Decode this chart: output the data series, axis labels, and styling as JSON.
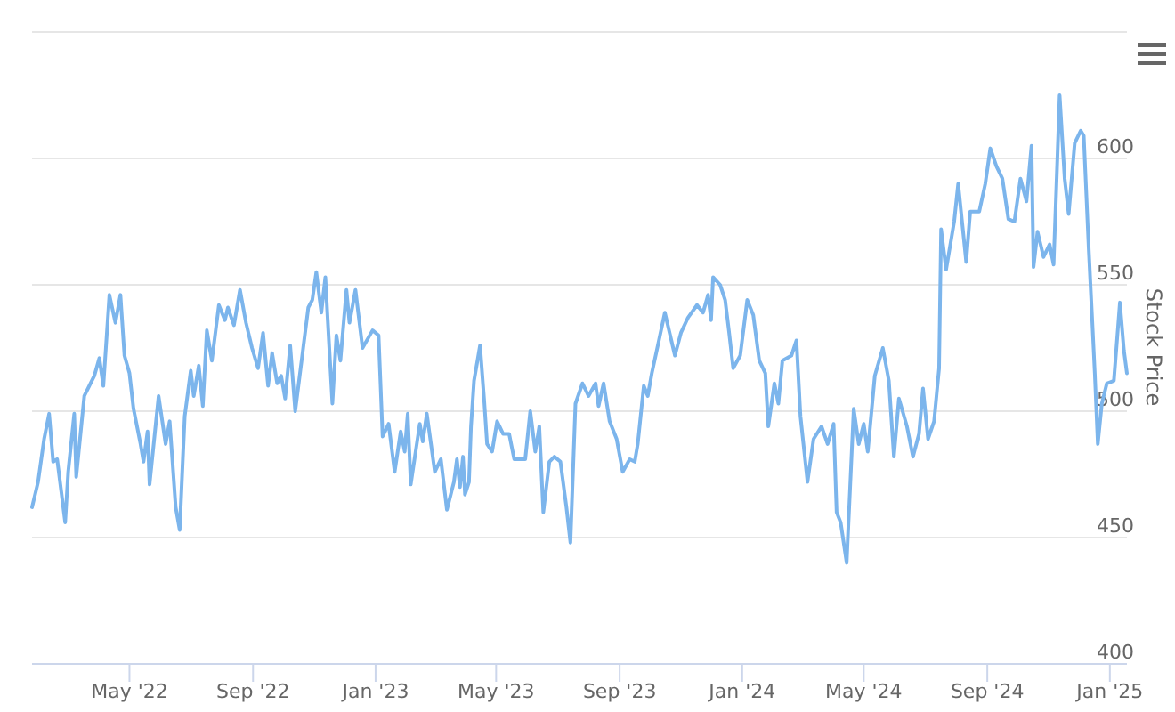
{
  "chart_data": {
    "type": "line",
    "ylabel": "Stock Price",
    "grid": "y",
    "xlim": [
      "2022-01-24",
      "2025-01-18"
    ],
    "ylim": [
      400,
      650
    ],
    "yticks": [
      400,
      450,
      500,
      550,
      600,
      {
        "value": 650,
        "label": null
      }
    ],
    "xticks": [
      {
        "value": "2022-05-01",
        "label": "May '22"
      },
      {
        "value": "2022-09-01",
        "label": "Sep '22"
      },
      {
        "value": "2023-01-01",
        "label": "Jan '23"
      },
      {
        "value": "2023-05-01",
        "label": "May '23"
      },
      {
        "value": "2023-09-01",
        "label": "Sep '23"
      },
      {
        "value": "2024-01-01",
        "label": "Jan '24"
      },
      {
        "value": "2024-05-01",
        "label": "May '24"
      },
      {
        "value": "2024-09-01",
        "label": "Sep '24"
      },
      {
        "value": "2025-01-01",
        "label": "Jan '25"
      }
    ],
    "series": [
      {
        "color": "#7cb5ec",
        "x": [
          "2022-01-24",
          "2022-01-30",
          "2022-02-05",
          "2022-02-10",
          "2022-02-14",
          "2022-02-18",
          "2022-02-26",
          "2022-03-01",
          "2022-03-07",
          "2022-03-09",
          "2022-03-17",
          "2022-03-27",
          "2022-04-01",
          "2022-04-05",
          "2022-04-11",
          "2022-04-17",
          "2022-04-22",
          "2022-04-26",
          "2022-05-01",
          "2022-05-05",
          "2022-05-12",
          "2022-05-15",
          "2022-05-19",
          "2022-05-21",
          "2022-05-30",
          "2022-06-06",
          "2022-06-10",
          "2022-06-16",
          "2022-06-20",
          "2022-06-25",
          "2022-07-01",
          "2022-07-04",
          "2022-07-09",
          "2022-07-13",
          "2022-07-17",
          "2022-07-22",
          "2022-07-29",
          "2022-08-04",
          "2022-08-07",
          "2022-08-13",
          "2022-08-19",
          "2022-08-25",
          "2022-08-31",
          "2022-09-06",
          "2022-09-11",
          "2022-09-16",
          "2022-09-20",
          "2022-09-25",
          "2022-09-29",
          "2022-10-03",
          "2022-10-08",
          "2022-10-13",
          "2022-10-20",
          "2022-10-26",
          "2022-10-30",
          "2022-11-03",
          "2022-11-08",
          "2022-11-12",
          "2022-11-19",
          "2022-11-23",
          "2022-11-27",
          "2022-12-03",
          "2022-12-06",
          "2022-12-12",
          "2022-12-19",
          "2022-12-29",
          "2023-01-04",
          "2023-01-08",
          "2023-01-14",
          "2023-01-20",
          "2023-01-26",
          "2023-01-30",
          "2023-02-02",
          "2023-02-05",
          "2023-02-14",
          "2023-02-17",
          "2023-02-21",
          "2023-03-01",
          "2023-03-07",
          "2023-03-13",
          "2023-03-20",
          "2023-03-23",
          "2023-03-26",
          "2023-03-29",
          "2023-03-31",
          "2023-04-04",
          "2023-04-06",
          "2023-04-09",
          "2023-04-15",
          "2023-04-19",
          "2023-04-22",
          "2023-04-27",
          "2023-05-02",
          "2023-05-08",
          "2023-05-14",
          "2023-05-19",
          "2023-05-30",
          "2023-06-04",
          "2023-06-09",
          "2023-06-13",
          "2023-06-17",
          "2023-06-23",
          "2023-06-28",
          "2023-07-04",
          "2023-07-10",
          "2023-07-14",
          "2023-07-19",
          "2023-07-26",
          "2023-08-01",
          "2023-08-08",
          "2023-08-11",
          "2023-08-16",
          "2023-08-22",
          "2023-08-29",
          "2023-09-04",
          "2023-09-11",
          "2023-09-16",
          "2023-09-19",
          "2023-09-25",
          "2023-09-29",
          "2023-10-03",
          "2023-10-09",
          "2023-10-16",
          "2023-10-26",
          "2023-11-01",
          "2023-11-08",
          "2023-11-17",
          "2023-11-23",
          "2023-11-28",
          "2023-12-01",
          "2023-12-03",
          "2023-12-10",
          "2023-12-15",
          "2023-12-19",
          "2023-12-23",
          "2023-12-30",
          "2024-01-06",
          "2024-01-12",
          "2024-01-18",
          "2024-01-24",
          "2024-01-27",
          "2024-02-02",
          "2024-02-06",
          "2024-02-10",
          "2024-02-19",
          "2024-02-24",
          "2024-02-28",
          "2024-03-06",
          "2024-03-12",
          "2024-03-20",
          "2024-03-26",
          "2024-04-01",
          "2024-04-04",
          "2024-04-08",
          "2024-04-14",
          "2024-04-21",
          "2024-04-26",
          "2024-05-01",
          "2024-05-05",
          "2024-05-12",
          "2024-05-20",
          "2024-05-26",
          "2024-05-31",
          "2024-06-05",
          "2024-06-13",
          "2024-06-19",
          "2024-06-25",
          "2024-06-29",
          "2024-07-04",
          "2024-07-10",
          "2024-07-15",
          "2024-07-17",
          "2024-07-22",
          "2024-07-30",
          "2024-08-03",
          "2024-08-11",
          "2024-08-15",
          "2024-08-24",
          "2024-08-30",
          "2024-09-04",
          "2024-09-10",
          "2024-09-16",
          "2024-09-22",
          "2024-09-28",
          "2024-10-04",
          "2024-10-10",
          "2024-10-15",
          "2024-10-17",
          "2024-10-21",
          "2024-10-27",
          "2024-11-02",
          "2024-11-06",
          "2024-11-12",
          "2024-11-17",
          "2024-11-21",
          "2024-11-27",
          "2024-12-03",
          "2024-12-06",
          "2024-12-11",
          "2024-12-17",
          "2024-12-20",
          "2024-12-24",
          "2024-12-29",
          "2025-01-05",
          "2025-01-11",
          "2025-01-15",
          "2025-01-18"
        ],
        "values": [
          462,
          472,
          489,
          499,
          480,
          481,
          456,
          476,
          499,
          474,
          506,
          514,
          521,
          510,
          546,
          535,
          546,
          522,
          515,
          501,
          487,
          480,
          492,
          471,
          506,
          487,
          496,
          462,
          453,
          498,
          516,
          506,
          518,
          502,
          532,
          520,
          542,
          536,
          541,
          534,
          548,
          535,
          525,
          517,
          531,
          510,
          523,
          511,
          514,
          505,
          526,
          500,
          522,
          541,
          544,
          555,
          539,
          553,
          503,
          530,
          520,
          548,
          535,
          548,
          525,
          532,
          530,
          490,
          495,
          476,
          492,
          484,
          499,
          471,
          495,
          488,
          499,
          476,
          481,
          461,
          472,
          481,
          470,
          482,
          467,
          472,
          494,
          512,
          526,
          505,
          487,
          484,
          496,
          491,
          491,
          481,
          481,
          500,
          484,
          494,
          460,
          480,
          482,
          480,
          462,
          448,
          503,
          511,
          506,
          511,
          502,
          511,
          496,
          489,
          476,
          481,
          480,
          487,
          510,
          506,
          515,
          526,
          539,
          522,
          531,
          537,
          542,
          539,
          546,
          536,
          553,
          550,
          544,
          531,
          517,
          522,
          544,
          538,
          520,
          515,
          494,
          511,
          503,
          520,
          522,
          528,
          498,
          472,
          489,
          494,
          487,
          495,
          460,
          456,
          440,
          501,
          487,
          495,
          484,
          514,
          525,
          512,
          482,
          505,
          494,
          482,
          491,
          509,
          489,
          496,
          517,
          572,
          556,
          575,
          590,
          559,
          579,
          579,
          590,
          604,
          597,
          592,
          576,
          575,
          592,
          583,
          605,
          557,
          571,
          561,
          566,
          558,
          625,
          592,
          578,
          606,
          611,
          609,
          564,
          515,
          487,
          503,
          511,
          512,
          543,
          524,
          515
        ]
      }
    ]
  }
}
